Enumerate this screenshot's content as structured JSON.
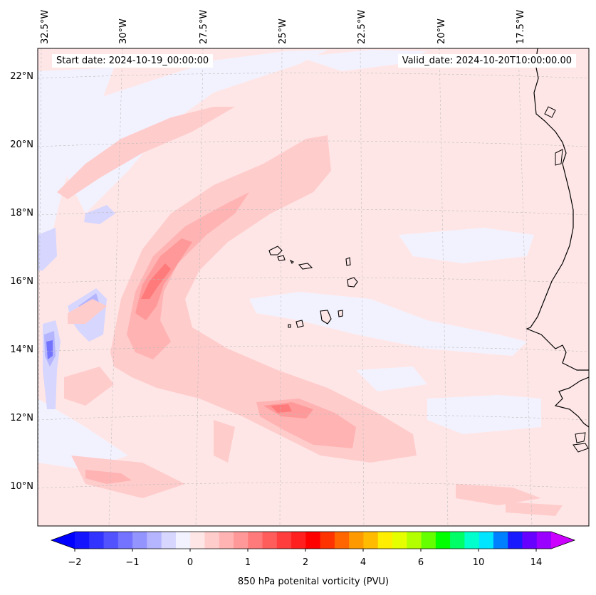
{
  "map": {
    "start_date": "Start date: 2024-10-19_00:00:00",
    "valid_date": "Valid_date: 2024-10-20T10:00:00.00",
    "lon_labels": [
      "32.5°W",
      "30°W",
      "27.5°W",
      "25°W",
      "22.5°W",
      "20°W",
      "17.5°W"
    ],
    "lat_labels": [
      "22°N",
      "20°N",
      "18°N",
      "16°N",
      "14°N",
      "12°N",
      "10°N"
    ],
    "colorbar": {
      "label": "850 hPa potenital vorticity (PVU)",
      "ticks": [
        "−2",
        "−1",
        "0",
        "1",
        "2",
        "4",
        "6",
        "10",
        "14"
      ],
      "colors": [
        "#1414ff",
        "#3333ff",
        "#5252ff",
        "#7373ff",
        "#9494ff",
        "#b5b5ff",
        "#d6d6ff",
        "#f2f2ff",
        "#ffe6e6",
        "#ffcccc",
        "#ffb3b3",
        "#ff9999",
        "#ff7a7a",
        "#ff5c5c",
        "#ff3d3d",
        "#ff1f1f",
        "#ff0000",
        "#ff3300",
        "#ff6600",
        "#ff9900",
        "#ffbb00",
        "#ffee00",
        "#e6ff00",
        "#b3ff00",
        "#66ff00",
        "#00ff00",
        "#00ff66",
        "#00ffcc",
        "#00e5ff",
        "#0080ff",
        "#1a1aff",
        "#6600ff",
        "#9900ff"
      ],
      "under_color": "#0000ff",
      "over_color": "#cc00ff"
    }
  }
}
